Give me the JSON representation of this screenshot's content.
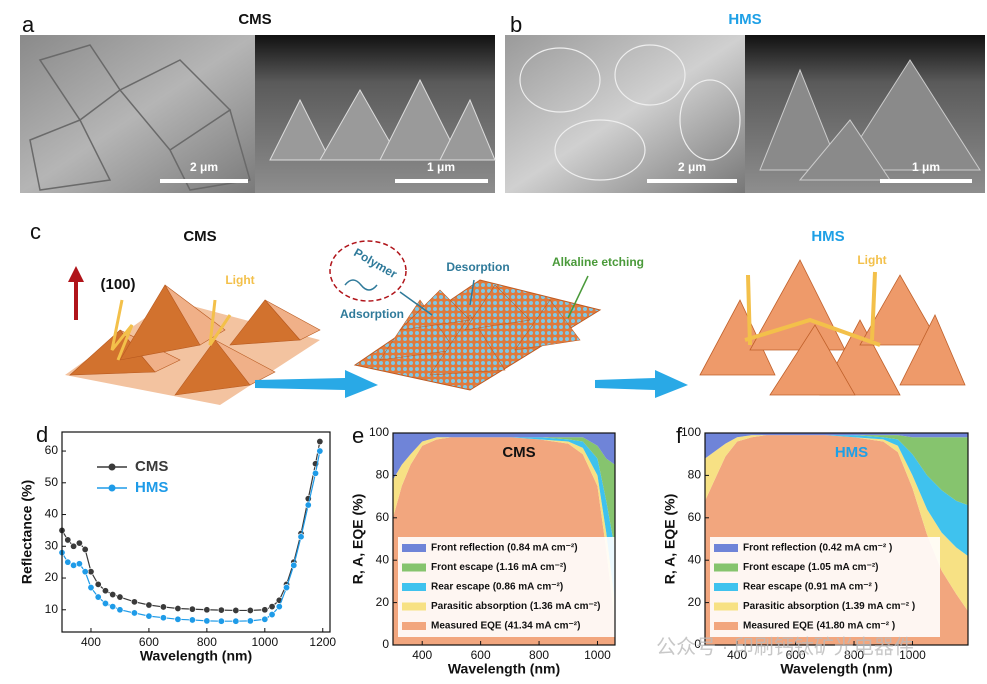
{
  "panels": {
    "a": {
      "letter": "a",
      "title": "CMS",
      "scale_left": "2 μm",
      "scale_right": "1 μm"
    },
    "b": {
      "letter": "b",
      "title": "HMS",
      "scale_left": "2 μm",
      "scale_right": "1 μm"
    },
    "c": {
      "letter": "c",
      "left_title": "CMS",
      "right_title": "HMS",
      "plane": "(100)",
      "light_left": "Light",
      "polymer": "Polymer",
      "adsorption": "Adsorption",
      "desorption": "Desorption",
      "etching": "Alkaline etching",
      "light_right": "Light"
    }
  },
  "watermark": "公众号 · 印刷钙钛矿光电器件",
  "chart_data": [
    {
      "type": "line",
      "panel": "d",
      "xlabel": "Wavelength (nm)",
      "ylabel": "Reflectance (%)",
      "x": [
        300,
        320,
        340,
        360,
        380,
        400,
        425,
        450,
        475,
        500,
        550,
        600,
        650,
        700,
        750,
        800,
        850,
        900,
        950,
        1000,
        1025,
        1050,
        1075,
        1100,
        1125,
        1150,
        1175,
        1190
      ],
      "xlim": [
        300,
        1225
      ],
      "xticks": [
        400,
        600,
        800,
        1000,
        1200
      ],
      "ylim": [
        3,
        66
      ],
      "yticks": [
        10,
        20,
        30,
        40,
        50,
        60
      ],
      "legend": "upper left",
      "series": [
        {
          "name": "CMS",
          "color": "#3a3a3a",
          "values": [
            35,
            32,
            30,
            31,
            29,
            22,
            18,
            16,
            14.8,
            14,
            12.5,
            11.5,
            10.9,
            10.4,
            10.2,
            10,
            9.9,
            9.8,
            9.8,
            10,
            11,
            13,
            18,
            25,
            34,
            45,
            56,
            63
          ]
        },
        {
          "name": "HMS",
          "color": "#1e9be8",
          "values": [
            28,
            25,
            24,
            24.5,
            22,
            17,
            14,
            12,
            11,
            10,
            9,
            8,
            7.5,
            7,
            6.8,
            6.5,
            6.4,
            6.4,
            6.5,
            7,
            8.5,
            11,
            17,
            24,
            33,
            43,
            53,
            60
          ]
        }
      ]
    },
    {
      "type": "stacked_area",
      "panel": "e",
      "title": "CMS",
      "xlabel": "Wavelength (nm)",
      "ylabel": "R, A, EQE (%)",
      "x": [
        300,
        330,
        360,
        400,
        450,
        500,
        600,
        700,
        800,
        900,
        950,
        1000,
        1030,
        1060
      ],
      "xlim": [
        300,
        1060
      ],
      "xticks": [
        400,
        600,
        800,
        1000
      ],
      "ylim": [
        0,
        100
      ],
      "yticks": [
        0,
        20,
        40,
        60,
        80,
        100
      ],
      "series": [
        {
          "name": "Front reflection (0.84 mA cm⁻²)",
          "color": "#6f84d8",
          "values": [
            22,
            15,
            10,
            4,
            2,
            2,
            2,
            2,
            2,
            2,
            2,
            6,
            12,
            15
          ]
        },
        {
          "name": "Front escape (1.16 mA cm⁻²)",
          "color": "#86c46e",
          "values": [
            0,
            0,
            0,
            0,
            0,
            0,
            0,
            0,
            0,
            1,
            2,
            6,
            20,
            40
          ]
        },
        {
          "name": "Rear escape (0.86 mA cm⁻²)",
          "color": "#3fc2ee",
          "values": [
            0,
            0,
            0,
            0,
            0,
            0,
            0,
            0,
            1,
            1,
            3,
            8,
            15,
            25
          ]
        },
        {
          "name": "Parasitic absorption (1.36 mA cm⁻²)",
          "color": "#f7e184",
          "values": [
            18,
            10,
            5,
            2,
            1,
            0,
            0,
            0,
            0,
            1,
            3,
            5,
            8,
            10
          ]
        },
        {
          "name": "Measured EQE (41.34 mA cm⁻²)",
          "color": "#f2a67e",
          "values": [
            60,
            75,
            85,
            94,
            97,
            98,
            98,
            98,
            97,
            95,
            90,
            75,
            45,
            10
          ]
        }
      ]
    },
    {
      "type": "stacked_area",
      "panel": "f",
      "title": "HMS",
      "xlabel": "Wavelength (nm)",
      "ylabel": "R, A, EQE (%)",
      "x": [
        290,
        330,
        360,
        400,
        450,
        500,
        600,
        700,
        800,
        900,
        950,
        1000,
        1050,
        1100,
        1150,
        1190
      ],
      "xlim": [
        290,
        1190
      ],
      "xticks": [
        400,
        600,
        800,
        1000
      ],
      "ylim": [
        0,
        100
      ],
      "yticks": [
        0,
        20,
        40,
        60,
        80,
        100
      ],
      "series": [
        {
          "name": "Front reflection (0.42 mA cm⁻² )",
          "color": "#6f84d8",
          "values": [
            12,
            8,
            5,
            2,
            1,
            1,
            1,
            1,
            1,
            1,
            1,
            2,
            2,
            2,
            2,
            2
          ]
        },
        {
          "name": "Front escape (1.05 mA cm⁻²)",
          "color": "#86c46e",
          "values": [
            0,
            0,
            0,
            0,
            0,
            0,
            0,
            0,
            0,
            1,
            2,
            8,
            18,
            25,
            30,
            32
          ]
        },
        {
          "name": "Rear escape (0.91 mA cm⁻² )",
          "color": "#3fc2ee",
          "values": [
            0,
            0,
            0,
            0,
            0,
            0,
            0,
            0,
            1,
            1,
            3,
            10,
            16,
            20,
            22,
            24
          ]
        },
        {
          "name": "Parasitic absorption (1.39 mA cm⁻² )",
          "color": "#f7e184",
          "values": [
            20,
            12,
            6,
            2,
            1,
            0,
            0,
            0,
            0,
            1,
            3,
            6,
            12,
            18,
            22,
            26
          ]
        },
        {
          "name": "Measured EQE (41.80 mA cm⁻² )",
          "color": "#f2a67e",
          "values": [
            68,
            80,
            89,
            96,
            98,
            99,
            99,
            99,
            98,
            96,
            91,
            74,
            52,
            35,
            24,
            16
          ]
        }
      ]
    }
  ]
}
